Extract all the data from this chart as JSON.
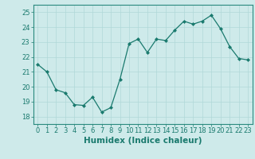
{
  "x": [
    0,
    1,
    2,
    3,
    4,
    5,
    6,
    7,
    8,
    9,
    10,
    11,
    12,
    13,
    14,
    15,
    16,
    17,
    18,
    19,
    20,
    21,
    22,
    23
  ],
  "y": [
    21.5,
    21.0,
    19.8,
    19.6,
    18.8,
    18.75,
    19.3,
    18.3,
    18.6,
    20.5,
    22.9,
    23.2,
    22.3,
    23.2,
    23.1,
    23.8,
    24.4,
    24.2,
    24.4,
    24.8,
    23.9,
    22.7,
    21.9,
    21.8
  ],
  "line_color": "#1a7a6e",
  "marker": "D",
  "marker_size": 2.0,
  "bg_color": "#ceeaea",
  "grid_color": "#b0d8d8",
  "xlabel": "Humidex (Indice chaleur)",
  "xlim": [
    -0.5,
    23.5
  ],
  "ylim": [
    17.5,
    25.5
  ],
  "yticks": [
    18,
    19,
    20,
    21,
    22,
    23,
    24,
    25
  ],
  "xticks": [
    0,
    1,
    2,
    3,
    4,
    5,
    6,
    7,
    8,
    9,
    10,
    11,
    12,
    13,
    14,
    15,
    16,
    17,
    18,
    19,
    20,
    21,
    22,
    23
  ],
  "tick_color": "#1a7a6e",
  "tick_fontsize": 6.0,
  "xlabel_fontsize": 7.5,
  "label_color": "#1a7a6e",
  "spine_color": "#2a8a7e",
  "linewidth": 0.9
}
